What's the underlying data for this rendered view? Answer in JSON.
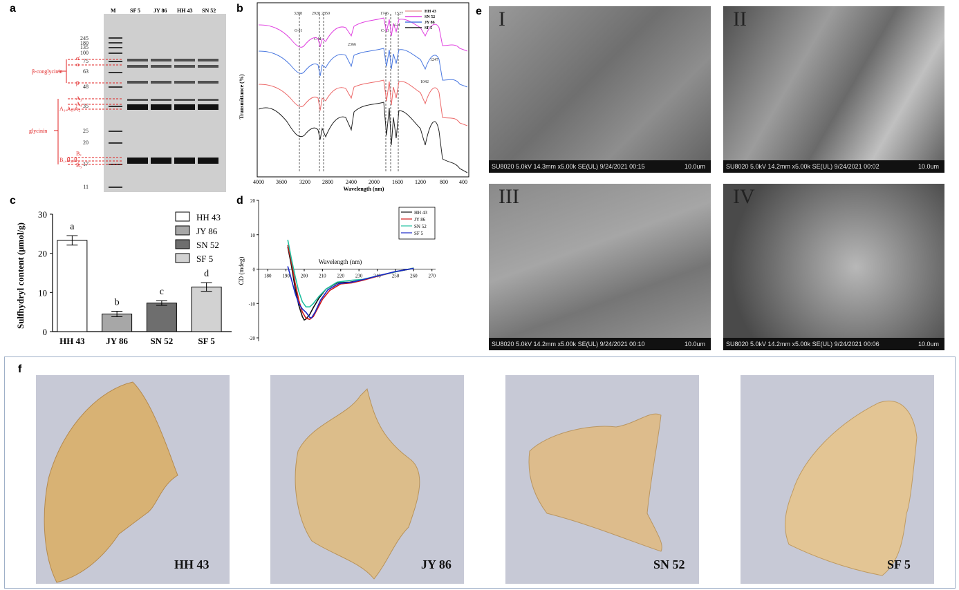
{
  "panels": {
    "a": "a",
    "b": "b",
    "c": "c",
    "d": "d",
    "e": "e",
    "f": "f"
  },
  "gel": {
    "lanes": [
      "M",
      "SF 5",
      "JY 86",
      "HH 43",
      "SN 52"
    ],
    "markers": [
      "245",
      "180",
      "135",
      "100",
      "75",
      "63",
      "48",
      "35",
      "25",
      "20",
      "17",
      "11"
    ],
    "groups": [
      "β-conglycinin",
      "glycinin"
    ],
    "subunits": [
      "α'",
      "α",
      "β",
      "A₃",
      "A₄",
      "A₁ₐA₁ᵦA₂",
      "Bₓ",
      "B₁ₐB₁ᵦB₂",
      "B₃"
    ]
  },
  "ftir": {
    "ylabel": "Transmittance (%)",
    "xlabel": "Wavelength (nm)",
    "xticks": [
      "4000",
      "3600",
      "3200",
      "2800",
      "2400",
      "2000",
      "1600",
      "1200",
      "800",
      "400"
    ],
    "legend": [
      {
        "name": "HH 43",
        "color": "#e8a0a0"
      },
      {
        "name": "SN 52",
        "color": "#e040e0"
      },
      {
        "name": "JY 86",
        "color": "#4a78e0"
      },
      {
        "name": "SF 5",
        "color": "#222222"
      }
    ],
    "annotations": [
      "3288",
      "2928",
      "2850",
      "2366",
      "1746",
      "1527",
      "1247",
      "1042",
      "O-H",
      "C-H",
      "C=O",
      "N-H"
    ]
  },
  "chart_data": [
    {
      "type": "bar",
      "ylabel": "Sulfhydryl content (μmol/g)",
      "categories": [
        "HH 43",
        "JY 86",
        "SN 52",
        "SF 5"
      ],
      "values": [
        23.3,
        4.5,
        7.3,
        11.4
      ],
      "errors": [
        1.2,
        0.7,
        0.6,
        1.1
      ],
      "letters": [
        "a",
        "b",
        "c",
        "d"
      ],
      "fills": [
        "#ffffff",
        "#a7a7a7",
        "#6e6e6e",
        "#d2d2d2"
      ],
      "ylim": [
        0,
        30
      ],
      "yticks": [
        "0",
        "10",
        "20",
        "30"
      ],
      "legend": [
        "HH 43",
        "JY 86",
        "SN 52",
        "SF 5"
      ]
    },
    {
      "type": "line",
      "xlabel": "Wavelength (nm)",
      "ylabel": "CD (mdeg)",
      "xticks": [
        "180",
        "190",
        "200",
        "210",
        "220",
        "230",
        "240",
        "250",
        "260",
        "270"
      ],
      "yticks": [
        "20",
        "10",
        "0",
        "-10",
        "-20"
      ],
      "xlim": [
        175,
        272
      ],
      "ylim": [
        -21,
        20
      ],
      "series": [
        {
          "name": "HH 43",
          "color": "#111111",
          "x": [
            191,
            193,
            195,
            197,
            199,
            200,
            201,
            203,
            205,
            208,
            212,
            218,
            225,
            232,
            240,
            250,
            260
          ],
          "y": [
            6.5,
            1.0,
            -5.5,
            -10.5,
            -13.8,
            -14.8,
            -14.5,
            -13.2,
            -11.2,
            -8.5,
            -5.8,
            -4.0,
            -3.8,
            -3.2,
            -2.0,
            -0.8,
            0.2
          ]
        },
        {
          "name": "JY 86",
          "color": "#d11a1a",
          "x": [
            191,
            193,
            195,
            197,
            199,
            201,
            203,
            205,
            207,
            210,
            214,
            220,
            226,
            232,
            240,
            250,
            260
          ],
          "y": [
            7.0,
            2.0,
            -4.0,
            -9.0,
            -12.5,
            -14.3,
            -14.6,
            -13.8,
            -11.8,
            -8.8,
            -6.2,
            -4.3,
            -4.0,
            -3.3,
            -2.1,
            -0.8,
            0.3
          ]
        },
        {
          "name": "SN 52",
          "color": "#20c0a0",
          "x": [
            191,
            193,
            195,
            197,
            199,
            201,
            203,
            205,
            208,
            212,
            218,
            225,
            232,
            240,
            250,
            260
          ],
          "y": [
            8.5,
            3.0,
            -2.0,
            -6.5,
            -9.5,
            -11.0,
            -11.0,
            -10.0,
            -8.0,
            -5.8,
            -3.8,
            -3.3,
            -3.0,
            -2.0,
            -0.8,
            0.3
          ]
        },
        {
          "name": "SF 5",
          "color": "#1a28c8",
          "x": [
            191,
            193,
            195,
            197,
            199,
            201,
            203,
            204,
            206,
            209,
            213,
            219,
            226,
            232,
            240,
            250,
            260
          ],
          "y": [
            0.8,
            -3.0,
            -7.0,
            -10.0,
            -11.6,
            -12.6,
            -14.0,
            -14.2,
            -12.5,
            -9.0,
            -6.0,
            -4.2,
            -3.8,
            -3.1,
            -2.0,
            -0.7,
            0.2
          ]
        }
      ]
    }
  ],
  "sem": [
    {
      "roman": "I",
      "info": "SU8020 5.0kV 14.3mm x5.00k SE(UL) 9/24/2021 00:15",
      "scale": "10.0um"
    },
    {
      "roman": "II",
      "info": "SU8020 5.0kV 14.2mm x5.00k SE(UL) 9/24/2021 00:02",
      "scale": "10.0um"
    },
    {
      "roman": "III",
      "info": "SU8020 5.0kV 14.2mm x5.00k SE(UL) 9/24/2021 00:10",
      "scale": "10.0um"
    },
    {
      "roman": "IV",
      "info": "SU8020 5.0kV 14.2mm x5.00k SE(UL) 9/24/2021 00:06",
      "scale": "10.0um"
    }
  ],
  "photos": [
    "HH 43",
    "JY 86",
    "SN 52",
    "SF 5"
  ],
  "colors": {
    "gel_bg": "#cfcfcf",
    "annotation_red": "#e02020",
    "yuba": "#d9b27a",
    "photo_bg": "#c7c9d6"
  }
}
